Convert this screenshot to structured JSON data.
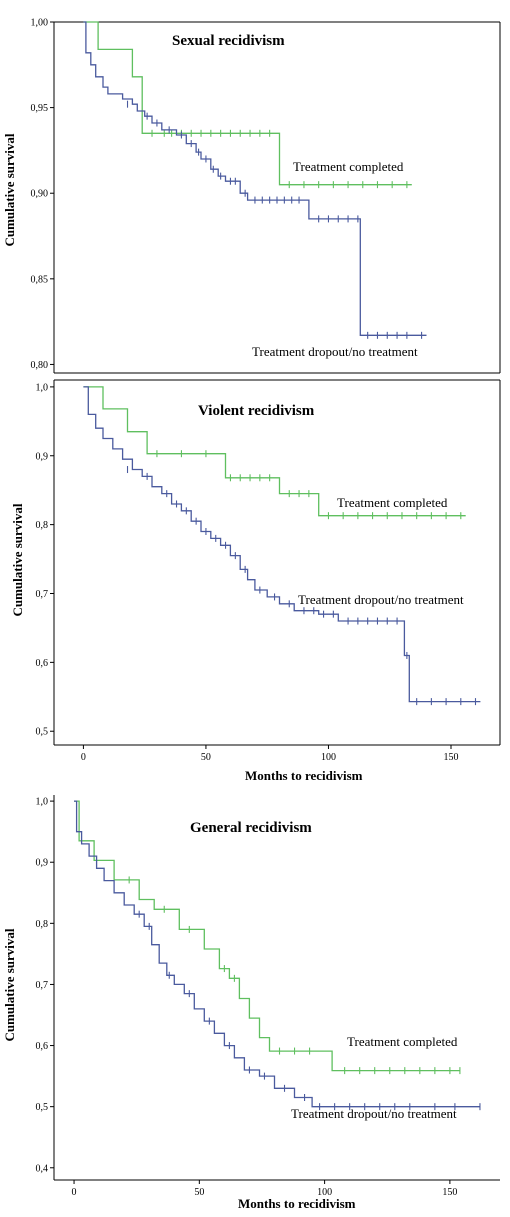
{
  "colors": {
    "completed": "#5fbf5f",
    "dropout": "#4a5a9e",
    "axis": "#000000"
  },
  "chart_data": [
    {
      "type": "line",
      "title": "Sexual recidivism",
      "ylabel": "Cumulative survival",
      "xlabel": "",
      "ylim": [
        0.795,
        1.0
      ],
      "xlim": [
        -12,
        170
      ],
      "yticks": [
        0.8,
        0.85,
        0.9,
        0.95,
        1.0
      ],
      "ytick_labels": [
        "0,80",
        "0,85",
        "0,90",
        "0,95",
        "1,00"
      ],
      "xticks": [],
      "xtick_labels": [],
      "series": [
        {
          "name": "Treatment completed",
          "key": "completed",
          "steps": [
            [
              0,
              1.0
            ],
            [
              6,
              0.984
            ],
            [
              20,
              0.968
            ],
            [
              24,
              0.935
            ],
            [
              80,
              0.905
            ],
            [
              134,
              0.905
            ]
          ],
          "censors": [
            [
              28,
              0.935
            ],
            [
              33,
              0.935
            ],
            [
              36,
              0.935
            ],
            [
              40,
              0.935
            ],
            [
              44,
              0.935
            ],
            [
              48,
              0.935
            ],
            [
              52,
              0.935
            ],
            [
              56,
              0.935
            ],
            [
              60,
              0.935
            ],
            [
              64,
              0.935
            ],
            [
              68,
              0.935
            ],
            [
              72,
              0.935
            ],
            [
              76,
              0.935
            ],
            [
              84,
              0.905
            ],
            [
              90,
              0.905
            ],
            [
              96,
              0.905
            ],
            [
              102,
              0.905
            ],
            [
              108,
              0.905
            ],
            [
              114,
              0.905
            ],
            [
              120,
              0.905
            ],
            [
              126,
              0.905
            ],
            [
              132,
              0.905
            ]
          ]
        },
        {
          "name": "Treatment dropout/no treatment",
          "key": "dropout",
          "steps": [
            [
              0,
              1.0
            ],
            [
              1,
              0.982
            ],
            [
              3,
              0.975
            ],
            [
              5,
              0.968
            ],
            [
              8,
              0.962
            ],
            [
              10,
              0.958
            ],
            [
              16,
              0.955
            ],
            [
              20,
              0.952
            ],
            [
              22,
              0.948
            ],
            [
              25,
              0.945
            ],
            [
              28,
              0.941
            ],
            [
              32,
              0.937
            ],
            [
              38,
              0.934
            ],
            [
              42,
              0.929
            ],
            [
              46,
              0.924
            ],
            [
              48,
              0.92
            ],
            [
              52,
              0.914
            ],
            [
              55,
              0.91
            ],
            [
              58,
              0.907
            ],
            [
              64,
              0.9
            ],
            [
              67,
              0.896
            ],
            [
              92,
              0.885
            ],
            [
              113,
              0.817
            ],
            [
              140,
              0.817
            ]
          ],
          "censors": [
            [
              18,
              0.952
            ],
            [
              26,
              0.945
            ],
            [
              30,
              0.941
            ],
            [
              35,
              0.937
            ],
            [
              40,
              0.934
            ],
            [
              44,
              0.929
            ],
            [
              47,
              0.924
            ],
            [
              50,
              0.92
            ],
            [
              53,
              0.914
            ],
            [
              56,
              0.91
            ],
            [
              60,
              0.907
            ],
            [
              62,
              0.907
            ],
            [
              66,
              0.9
            ],
            [
              70,
              0.896
            ],
            [
              73,
              0.896
            ],
            [
              76,
              0.896
            ],
            [
              79,
              0.896
            ],
            [
              82,
              0.896
            ],
            [
              85,
              0.896
            ],
            [
              88,
              0.896
            ],
            [
              96,
              0.885
            ],
            [
              100,
              0.885
            ],
            [
              104,
              0.885
            ],
            [
              108,
              0.885
            ],
            [
              112,
              0.885
            ],
            [
              116,
              0.817
            ],
            [
              120,
              0.817
            ],
            [
              124,
              0.817
            ],
            [
              128,
              0.817
            ],
            [
              132,
              0.817
            ],
            [
              138,
              0.817
            ]
          ]
        }
      ]
    },
    {
      "type": "line",
      "title": "Violent recidivism",
      "ylabel": "Cumulative survival",
      "xlabel": "Months to recidivism",
      "ylim": [
        0.48,
        1.01
      ],
      "xlim": [
        -12,
        170
      ],
      "yticks": [
        0.5,
        0.6,
        0.7,
        0.8,
        0.9,
        1.0
      ],
      "ytick_labels": [
        "0,5",
        "0,6",
        "0,7",
        "0,8",
        "0,9",
        "1,0"
      ],
      "xticks": [
        0,
        50,
        100,
        150
      ],
      "xtick_labels": [
        "0",
        "50",
        "100",
        "150"
      ],
      "series": [
        {
          "name": "Treatment completed",
          "key": "completed",
          "steps": [
            [
              0,
              1.0
            ],
            [
              8,
              0.968
            ],
            [
              18,
              0.935
            ],
            [
              26,
              0.903
            ],
            [
              58,
              0.868
            ],
            [
              80,
              0.845
            ],
            [
              96,
              0.813
            ],
            [
              156,
              0.813
            ]
          ],
          "censors": [
            [
              30,
              0.903
            ],
            [
              40,
              0.903
            ],
            [
              50,
              0.903
            ],
            [
              60,
              0.868
            ],
            [
              64,
              0.868
            ],
            [
              68,
              0.868
            ],
            [
              72,
              0.868
            ],
            [
              76,
              0.868
            ],
            [
              84,
              0.845
            ],
            [
              88,
              0.845
            ],
            [
              92,
              0.845
            ],
            [
              100,
              0.813
            ],
            [
              106,
              0.813
            ],
            [
              112,
              0.813
            ],
            [
              118,
              0.813
            ],
            [
              124,
              0.813
            ],
            [
              130,
              0.813
            ],
            [
              136,
              0.813
            ],
            [
              142,
              0.813
            ],
            [
              148,
              0.813
            ],
            [
              154,
              0.813
            ]
          ]
        },
        {
          "name": "Treatment dropout/no treatment",
          "key": "dropout",
          "steps": [
            [
              0,
              1.0
            ],
            [
              2,
              0.96
            ],
            [
              5,
              0.94
            ],
            [
              8,
              0.925
            ],
            [
              12,
              0.91
            ],
            [
              16,
              0.895
            ],
            [
              20,
              0.88
            ],
            [
              24,
              0.87
            ],
            [
              28,
              0.855
            ],
            [
              32,
              0.845
            ],
            [
              36,
              0.83
            ],
            [
              40,
              0.82
            ],
            [
              44,
              0.805
            ],
            [
              48,
              0.79
            ],
            [
              52,
              0.78
            ],
            [
              56,
              0.77
            ],
            [
              60,
              0.755
            ],
            [
              64,
              0.735
            ],
            [
              67,
              0.72
            ],
            [
              70,
              0.705
            ],
            [
              75,
              0.695
            ],
            [
              80,
              0.685
            ],
            [
              86,
              0.675
            ],
            [
              96,
              0.67
            ],
            [
              104,
              0.66
            ],
            [
              131,
              0.61
            ],
            [
              133,
              0.543
            ],
            [
              162,
              0.543
            ]
          ],
          "censors": [
            [
              18,
              0.88
            ],
            [
              26,
              0.87
            ],
            [
              34,
              0.845
            ],
            [
              38,
              0.83
            ],
            [
              42,
              0.82
            ],
            [
              46,
              0.805
            ],
            [
              50,
              0.79
            ],
            [
              54,
              0.78
            ],
            [
              58,
              0.77
            ],
            [
              62,
              0.755
            ],
            [
              66,
              0.735
            ],
            [
              72,
              0.705
            ],
            [
              78,
              0.695
            ],
            [
              84,
              0.685
            ],
            [
              90,
              0.675
            ],
            [
              94,
              0.675
            ],
            [
              98,
              0.67
            ],
            [
              102,
              0.67
            ],
            [
              108,
              0.66
            ],
            [
              112,
              0.66
            ],
            [
              116,
              0.66
            ],
            [
              120,
              0.66
            ],
            [
              124,
              0.66
            ],
            [
              128,
              0.66
            ],
            [
              132,
              0.61
            ],
            [
              136,
              0.543
            ],
            [
              142,
              0.543
            ],
            [
              148,
              0.543
            ],
            [
              154,
              0.543
            ],
            [
              160,
              0.543
            ]
          ]
        }
      ]
    },
    {
      "type": "line",
      "title": "General recidivism",
      "ylabel": "Cumulative survival",
      "xlabel": "Months to recidivism",
      "ylim": [
        0.38,
        1.01
      ],
      "xlim": [
        -8,
        170
      ],
      "yticks": [
        0.4,
        0.5,
        0.6,
        0.7,
        0.8,
        0.9,
        1.0
      ],
      "ytick_labels": [
        "0,4",
        "0,5",
        "0,6",
        "0,7",
        "0,8",
        "0,9",
        "1,0"
      ],
      "xticks": [
        0,
        50,
        100,
        150
      ],
      "xtick_labels": [
        "0",
        "50",
        "100",
        "150"
      ],
      "series": [
        {
          "name": "Treatment completed",
          "key": "completed",
          "steps": [
            [
              0,
              1.0
            ],
            [
              2,
              0.935
            ],
            [
              8,
              0.903
            ],
            [
              16,
              0.871
            ],
            [
              26,
              0.839
            ],
            [
              32,
              0.823
            ],
            [
              42,
              0.79
            ],
            [
              52,
              0.758
            ],
            [
              58,
              0.726
            ],
            [
              62,
              0.71
            ],
            [
              66,
              0.677
            ],
            [
              70,
              0.645
            ],
            [
              74,
              0.613
            ],
            [
              78,
              0.591
            ],
            [
              103,
              0.559
            ],
            [
              154,
              0.559
            ]
          ],
          "censors": [
            [
              22,
              0.871
            ],
            [
              36,
              0.823
            ],
            [
              46,
              0.79
            ],
            [
              60,
              0.726
            ],
            [
              64,
              0.71
            ],
            [
              82,
              0.591
            ],
            [
              88,
              0.591
            ],
            [
              94,
              0.591
            ],
            [
              108,
              0.559
            ],
            [
              114,
              0.559
            ],
            [
              120,
              0.559
            ],
            [
              126,
              0.559
            ],
            [
              132,
              0.559
            ],
            [
              138,
              0.559
            ],
            [
              144,
              0.559
            ],
            [
              150,
              0.559
            ],
            [
              154,
              0.559
            ]
          ]
        },
        {
          "name": "Treatment dropout/no treatment",
          "key": "dropout",
          "steps": [
            [
              0,
              1.0
            ],
            [
              1,
              0.95
            ],
            [
              3,
              0.93
            ],
            [
              6,
              0.91
            ],
            [
              9,
              0.89
            ],
            [
              12,
              0.87
            ],
            [
              16,
              0.85
            ],
            [
              20,
              0.83
            ],
            [
              24,
              0.815
            ],
            [
              28,
              0.795
            ],
            [
              31,
              0.765
            ],
            [
              34,
              0.735
            ],
            [
              37,
              0.715
            ],
            [
              40,
              0.7
            ],
            [
              44,
              0.685
            ],
            [
              48,
              0.66
            ],
            [
              52,
              0.64
            ],
            [
              56,
              0.62
            ],
            [
              60,
              0.6
            ],
            [
              64,
              0.58
            ],
            [
              68,
              0.56
            ],
            [
              74,
              0.55
            ],
            [
              80,
              0.53
            ],
            [
              88,
              0.515
            ],
            [
              95,
              0.5
            ],
            [
              162,
              0.5
            ]
          ],
          "censors": [
            [
              26,
              0.815
            ],
            [
              30,
              0.795
            ],
            [
              38,
              0.715
            ],
            [
              46,
              0.685
            ],
            [
              54,
              0.64
            ],
            [
              62,
              0.6
            ],
            [
              70,
              0.56
            ],
            [
              76,
              0.55
            ],
            [
              84,
              0.53
            ],
            [
              92,
              0.515
            ],
            [
              98,
              0.5
            ],
            [
              104,
              0.5
            ],
            [
              110,
              0.5
            ],
            [
              116,
              0.5
            ],
            [
              122,
              0.5
            ],
            [
              128,
              0.5
            ],
            [
              134,
              0.5
            ],
            [
              144,
              0.5
            ],
            [
              152,
              0.5
            ],
            [
              162,
              0.5
            ]
          ]
        }
      ]
    }
  ]
}
